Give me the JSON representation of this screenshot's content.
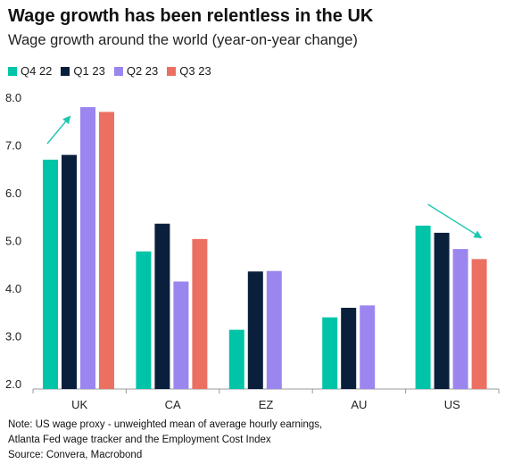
{
  "title": "Wage growth has been relentless in the UK",
  "subtitle": "Wage growth around the world (year-on-year change)",
  "colors": {
    "Q4 22": "#00c4a7",
    "Q1 23": "#0a1f3c",
    "Q2 23": "#9b86f0",
    "Q3 23": "#ec7062",
    "arrow": "#1cc8b0",
    "axis": "#999999"
  },
  "notes": [
    "Note: US wage proxy - unweighted mean of average hourly earnings,",
    "Atlanta Fed wage tracker and the Employment Cost Index",
    "Source: Convera, Macrobond"
  ],
  "chart_data": {
    "type": "bar",
    "categories": [
      "UK",
      "CA",
      "EZ",
      "AU",
      "US"
    ],
    "series": [
      {
        "name": "Q4 22",
        "values": [
          6.7,
          4.78,
          3.14,
          3.4,
          5.32
        ]
      },
      {
        "name": "Q1 23",
        "values": [
          6.8,
          5.36,
          4.36,
          3.6,
          5.17
        ]
      },
      {
        "name": "Q2 23",
        "values": [
          7.8,
          4.15,
          4.37,
          3.65,
          4.83
        ]
      },
      {
        "name": "Q3 23",
        "values": [
          7.7,
          5.04,
          null,
          null,
          4.62
        ]
      }
    ],
    "yticks": [
      "2.0",
      "3.0",
      "4.0",
      "5.0",
      "6.0",
      "7.0",
      "8.0"
    ],
    "ylim": [
      1.9,
      8.1
    ],
    "grid": false,
    "legend": "top-left",
    "annotations": [
      {
        "type": "arrow-up",
        "category": "UK"
      },
      {
        "type": "arrow-down",
        "category": "US"
      }
    ]
  }
}
